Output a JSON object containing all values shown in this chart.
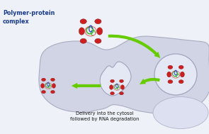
{
  "bg_color": "#f0f4f8",
  "cell_color": "#d0d4e4",
  "cell_edge_color": "#a8acc0",
  "arrow_color": "#66cc00",
  "label_polymer_protein": "Polymer-protein\ncomplex",
  "label_delivery": "Delivery into the cytosol\nfollowed by RNA degradation",
  "label_color": "#1a3a8a",
  "figsize": [
    2.95,
    1.89
  ],
  "dpi": 100,
  "circle_fill": "#e4e8f4",
  "circle_edge": "#a0a4bc",
  "nucleus_fill": "#dde0f0",
  "nucleus_edge": "#b0b4cc"
}
